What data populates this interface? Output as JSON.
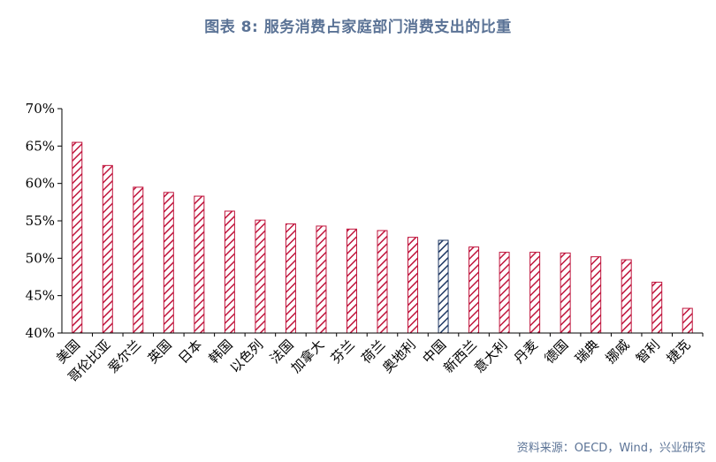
{
  "title": "图表 8:   服务消费占家庭部门消费支出的比重",
  "source": "资料来源：OECD，Wind，兴业研究",
  "colors": {
    "default": "#c0143c",
    "highlight": "#1f3864",
    "title": "#5b7396"
  },
  "chart_data": {
    "type": "bar",
    "categories": [
      "美国",
      "哥伦比亚",
      "爱尔兰",
      "英国",
      "日本",
      "韩国",
      "以色列",
      "法国",
      "加拿大",
      "芬兰",
      "荷兰",
      "奥地利",
      "中国",
      "新西兰",
      "意大利",
      "丹麦",
      "德国",
      "瑞典",
      "挪威",
      "智利",
      "捷克"
    ],
    "values": [
      65.5,
      62.4,
      59.5,
      58.8,
      58.3,
      56.3,
      55.1,
      54.6,
      54.3,
      53.9,
      53.7,
      52.8,
      52.4,
      51.5,
      50.8,
      50.8,
      50.7,
      50.2,
      49.8,
      46.8,
      43.3
    ],
    "highlight": "中国",
    "ylim": [
      40,
      70
    ],
    "yticks": [
      "40%",
      "45%",
      "50%",
      "55%",
      "60%",
      "65%",
      "70%"
    ],
    "xlabel": "",
    "ylabel": "",
    "pattern": "diagonal-hatch",
    "grid": false
  }
}
